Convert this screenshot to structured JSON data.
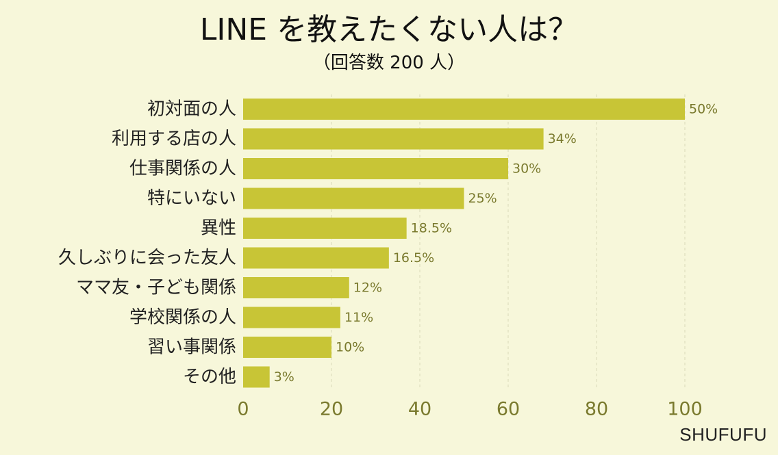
{
  "chart_data": {
    "type": "bar",
    "orientation": "horizontal",
    "title": "LINE を教えたくない人は？",
    "subtitle": "（回答数 200 人）",
    "categories": [
      "初対面の人",
      "利用する店の人",
      "仕事関係の人",
      "特にいない",
      "異性",
      "久しぶりに会った友人",
      "ママ友・子ども関係",
      "学校関係の人",
      "習い事関係",
      "その他"
    ],
    "values": [
      100,
      68,
      60,
      50,
      37,
      33,
      24,
      22,
      20,
      6
    ],
    "data_labels": [
      "50%",
      "34%",
      "30%",
      "25%",
      "18.5%",
      "16.5%",
      "12%",
      "11%",
      "10%",
      "3%"
    ],
    "x_ticks": [
      0,
      20,
      40,
      60,
      80,
      100
    ],
    "xlim": [
      0,
      100
    ],
    "grid": "vertical-dashed",
    "bar_color": "#c8c536",
    "label_color": "#7a7a2e",
    "background": "#f7f7da"
  },
  "watermark": "SHUFUFU"
}
